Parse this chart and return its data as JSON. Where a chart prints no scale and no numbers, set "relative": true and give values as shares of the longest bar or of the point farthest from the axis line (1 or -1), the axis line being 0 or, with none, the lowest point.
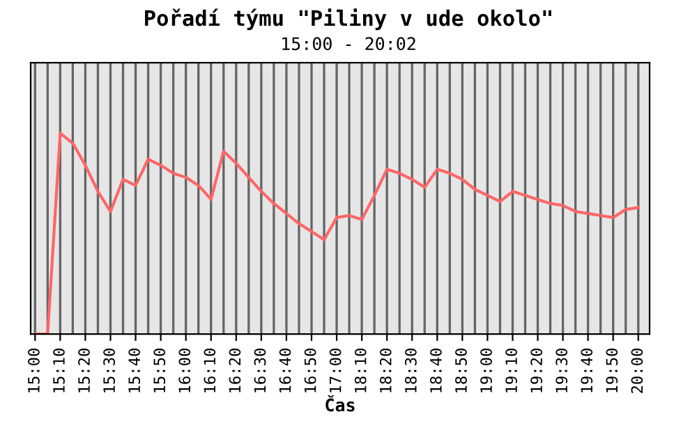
{
  "chart_data": {
    "type": "line",
    "title": "Pořadí týmu \"Piliny v ude okolo\"",
    "subtitle": "15:00 - 20:02",
    "xlabel": "Čas",
    "relative": true,
    "categories": [
      "15:00",
      null,
      "15:10",
      null,
      "15:20",
      null,
      "15:30",
      null,
      "15:40",
      null,
      "15:50",
      null,
      "16:00",
      null,
      "16:10",
      null,
      "16:20",
      null,
      "16:30",
      null,
      "16:40",
      null,
      "16:50",
      null,
      "17:00",
      null,
      "18:10",
      null,
      "18:20",
      null,
      "18:30",
      null,
      "18:40",
      null,
      "18:50",
      null,
      "19:00",
      null,
      "19:10",
      null,
      "19:20",
      null,
      "19:30",
      null,
      "19:40",
      null,
      "19:50",
      null,
      "20:00"
    ],
    "series": [
      {
        "color": "#ff6666",
        "values": [
          0,
          0,
          1.0,
          0.95,
          0.84,
          0.71,
          0.61,
          0.77,
          0.74,
          0.87,
          0.84,
          0.8,
          0.78,
          0.74,
          0.67,
          0.91,
          0.85,
          0.78,
          0.71,
          0.65,
          0.6,
          0.55,
          0.51,
          0.47,
          0.58,
          0.59,
          0.57,
          0.69,
          0.82,
          0.8,
          0.77,
          0.73,
          0.82,
          0.8,
          0.77,
          0.72,
          0.69,
          0.66,
          0.71,
          0.69,
          0.67,
          0.65,
          0.64,
          0.61,
          0.6,
          0.59,
          0.58,
          0.62,
          0.63
        ]
      }
    ],
    "grid": "x",
    "marker": "none",
    "line_style": "solid",
    "legend": false
  }
}
